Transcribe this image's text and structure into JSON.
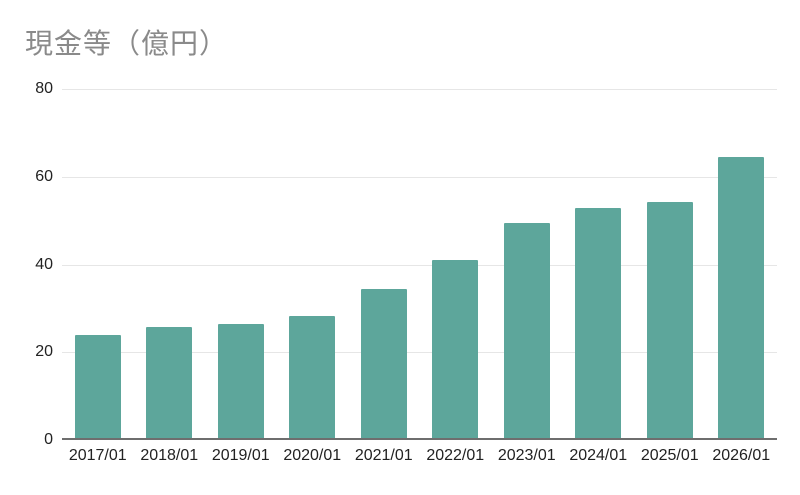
{
  "chart_data": {
    "type": "bar",
    "title": "現金等（億円）",
    "categories": [
      "2017/01",
      "2018/01",
      "2019/01",
      "2020/01",
      "2021/01",
      "2022/01",
      "2023/01",
      "2024/01",
      "2025/01",
      "2026/01"
    ],
    "values": [
      23.5,
      25.4,
      25.9,
      27.7,
      34.0,
      40.5,
      49.0,
      52.5,
      53.7,
      64.0
    ],
    "xlabel": "",
    "ylabel": "",
    "ylim": [
      0,
      80
    ],
    "yticks": [
      0,
      20,
      40,
      60,
      80
    ],
    "grid": true,
    "legend": false,
    "colors": {
      "bar": "#5da69b",
      "title": "#8a8a8a",
      "tick_label": "#222222",
      "gridline": "#e6e6e6",
      "baseline": "#6e6e6e",
      "background": "#ffffff"
    }
  }
}
